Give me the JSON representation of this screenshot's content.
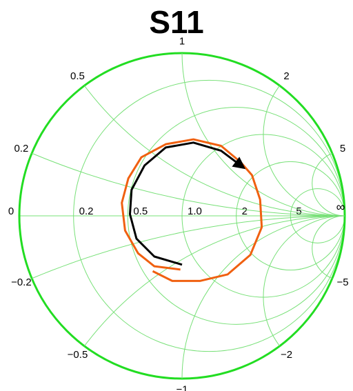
{
  "chart_data": {
    "type": "smith",
    "title": "S11",
    "grid_color": "#77e077",
    "outline_color": "#22dd22",
    "resistance_ticks": [
      0,
      0.2,
      0.5,
      {
        "value": 1,
        "label": "1.0"
      },
      2,
      5
    ],
    "infinity_label": "∞",
    "reactance_ticks": [
      0.2,
      0.5,
      1,
      2,
      5,
      {
        "value": -0.2,
        "label": "−0.2"
      },
      {
        "value": -0.5,
        "label": "−0.5"
      },
      {
        "value": -1,
        "label": "−1"
      },
      {
        "value": -2,
        "label": "−2"
      },
      {
        "value": -5,
        "label": "−5"
      }
    ],
    "series": [
      {
        "color": "#f06010",
        "re": [
          -0.18,
          -0.06,
          0.11,
          0.28,
          0.42,
          0.49,
          0.48,
          0.43,
          0.36,
          0.24,
          0.07,
          -0.1,
          -0.25,
          -0.33,
          -0.37,
          -0.35,
          -0.27,
          -0.17,
          -0.01
        ],
        "im": [
          -0.34,
          -0.4,
          -0.4,
          -0.36,
          -0.24,
          -0.07,
          0.1,
          0.25,
          0.33,
          0.43,
          0.47,
          0.44,
          0.36,
          0.23,
          0.08,
          -0.09,
          -0.23,
          -0.31,
          -0.33
        ]
      },
      {
        "color": "#000000",
        "re": [
          0.0,
          -0.17,
          -0.28,
          -0.32,
          -0.31,
          -0.23,
          -0.1,
          0.07,
          0.24,
          0.36
        ],
        "im": [
          -0.3,
          -0.25,
          -0.14,
          0.01,
          0.16,
          0.31,
          0.42,
          0.45,
          0.4,
          0.31
        ]
      }
    ]
  }
}
